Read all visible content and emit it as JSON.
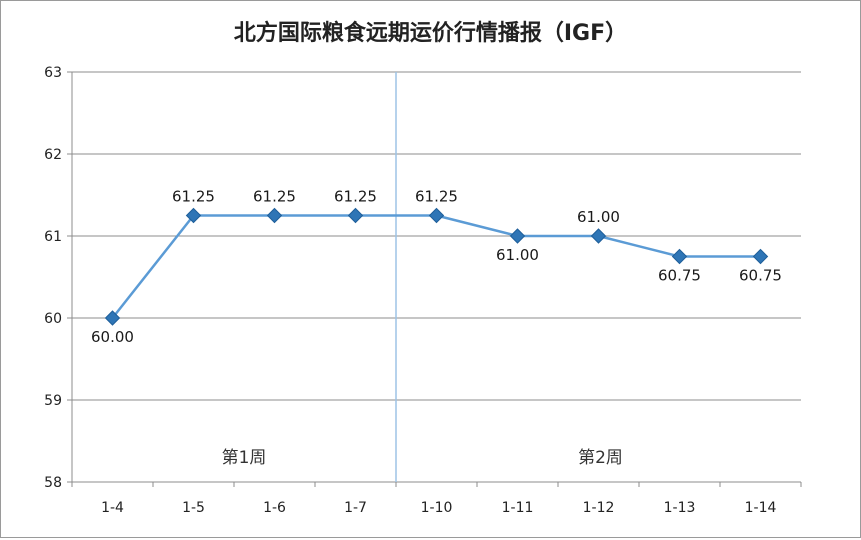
{
  "chart_data": {
    "type": "line",
    "title": "北方国际粮食远期运价行情播报（IGF）",
    "categories": [
      "1-4",
      "1-5",
      "1-6",
      "1-7",
      "1-10",
      "1-11",
      "1-12",
      "1-13",
      "1-14"
    ],
    "series": [
      {
        "values": [
          60.0,
          61.25,
          61.25,
          61.25,
          61.25,
          61.0,
          61.0,
          60.75,
          60.75
        ],
        "data_labels": [
          "60.00",
          "61.25",
          "61.25",
          "61.25",
          "61.25",
          "61.00",
          "61.00",
          "60.75",
          "60.75"
        ]
      }
    ],
    "ylim": [
      58,
      63
    ],
    "yticks": [
      "58",
      "59",
      "60",
      "61",
      "62",
      "63"
    ],
    "grid": "horizontal",
    "annotations": [
      "第1周",
      "第2周"
    ],
    "week_divider_after_index": 3,
    "colors": {
      "line": "#5b9bd5",
      "marker": "#2e75b6",
      "grid": "#8c8c8c",
      "divider": "#9dc3e6"
    }
  }
}
